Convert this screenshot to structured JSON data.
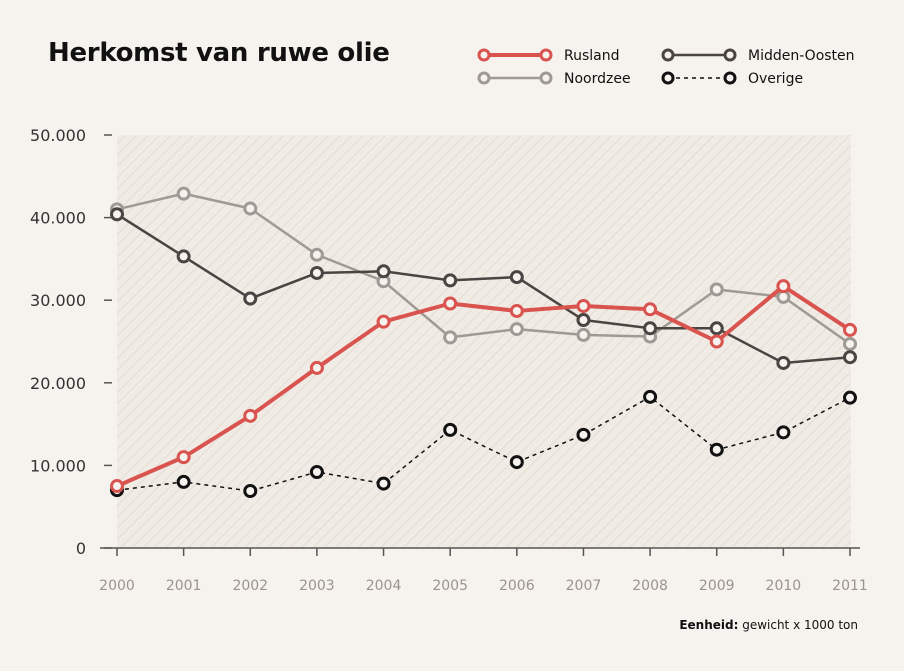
{
  "chart_data": {
    "type": "line",
    "title": "Herkomst van ruwe olie",
    "x": [
      "2000",
      "2001",
      "2002",
      "2003",
      "2004",
      "2005",
      "2006",
      "2007",
      "2008",
      "2009",
      "2010",
      "2011"
    ],
    "y_ticks": [
      "0",
      "10.000",
      "20.000",
      "30.000",
      "40.000",
      "50.000"
    ],
    "ylim": [
      0,
      50000
    ],
    "grid": false,
    "legend_position": "top-right",
    "series": [
      {
        "name": "Rusland",
        "color": "#d9534f",
        "style": "solid-thick",
        "values": [
          7500,
          11000,
          16000,
          21800,
          27400,
          29600,
          28700,
          29300,
          28900,
          25000,
          31700,
          26400
        ]
      },
      {
        "name": "Midden-Oosten",
        "color": "#4a4542",
        "style": "solid",
        "values": [
          40400,
          35300,
          30200,
          33300,
          33500,
          32400,
          32800,
          27600,
          26600,
          26600,
          22400,
          23100
        ]
      },
      {
        "name": "Noordzee",
        "color": "#a09a95",
        "style": "solid",
        "values": [
          41000,
          42900,
          41100,
          35500,
          32300,
          25500,
          26500,
          25800,
          25600,
          31300,
          30400,
          24700
        ]
      },
      {
        "name": "Overige",
        "color": "#111111",
        "style": "dashed",
        "values": [
          7000,
          8000,
          6900,
          9200,
          7800,
          14300,
          10400,
          13700,
          18300,
          11900,
          14000,
          18200
        ]
      }
    ],
    "unit_label": "Eenheid:",
    "unit_text": "gewicht x 1000 ton"
  }
}
